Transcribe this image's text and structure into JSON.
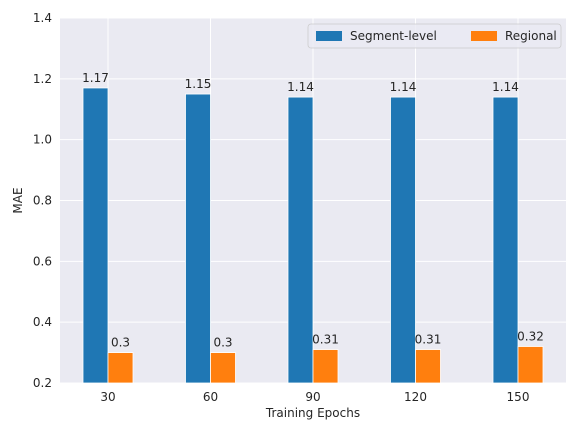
{
  "chart_data": {
    "type": "bar",
    "categories": [
      "30",
      "60",
      "90",
      "120",
      "150"
    ],
    "series": [
      {
        "name": "Segment-level",
        "values": [
          1.17,
          1.15,
          1.14,
          1.14,
          1.14
        ],
        "labels": [
          "1.17",
          "1.15",
          "1.14",
          "1.14",
          "1.14"
        ],
        "color": "#1f77b4"
      },
      {
        "name": "Regional",
        "values": [
          0.3,
          0.3,
          0.31,
          0.31,
          0.32
        ],
        "labels": [
          "0.3",
          "0.3",
          "0.31",
          "0.31",
          "0.32"
        ],
        "color": "#ff7f0e"
      }
    ],
    "xlabel": "Training Epochs",
    "ylabel": "MAE",
    "ylim": [
      0.2,
      1.4
    ],
    "yticks": [
      "0.2",
      "0.4",
      "0.6",
      "0.8",
      "1.0",
      "1.2",
      "1.4"
    ],
    "grid": true,
    "legend_position": "top-right",
    "background_color": "#eaeaf2",
    "grid_color": "#ffffff"
  }
}
